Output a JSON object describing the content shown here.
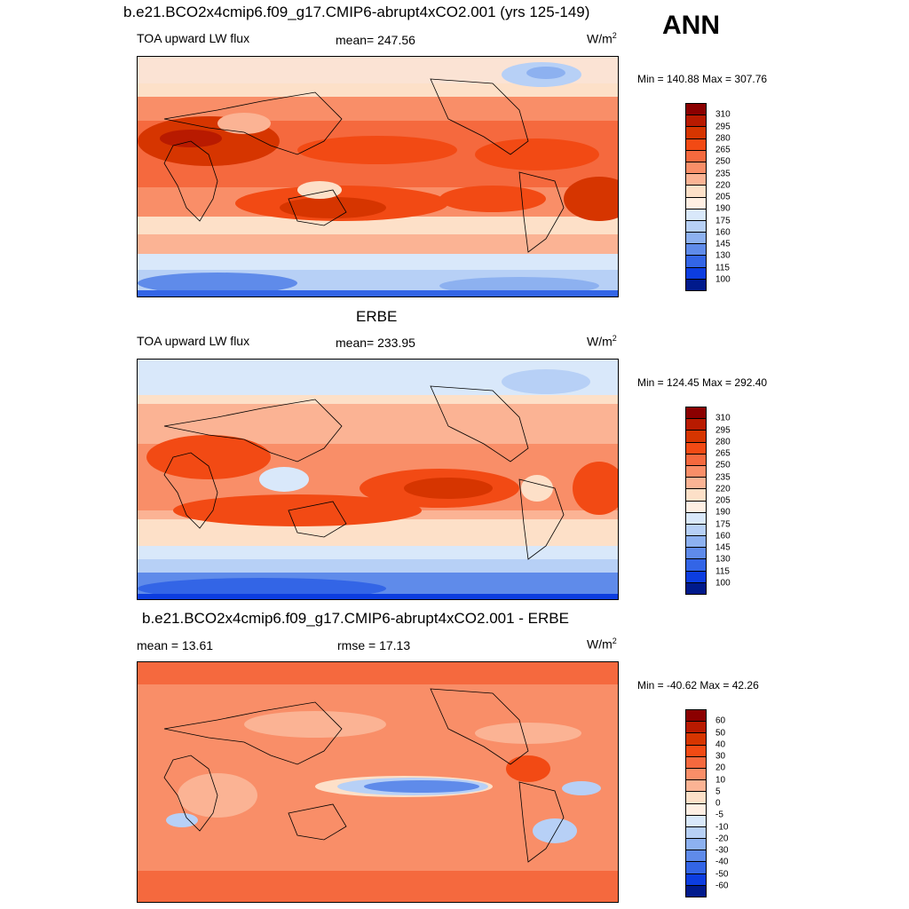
{
  "title": "b.e21.BCO2x4cmip6.f09_g17.CMIP6-abrupt4xCO2.001 (yrs 125-149)",
  "season": "ANN",
  "panels": [
    {
      "variable": "TOA upward LW flux",
      "stat_left": "",
      "stat_center": "mean= 247.56",
      "units": "W/m",
      "units_sup": "2",
      "minmax": "Min = 140.88 Max = 307.76",
      "levels": [
        "310",
        "295",
        "280",
        "265",
        "250",
        "235",
        "220",
        "205",
        "190",
        "175",
        "160",
        "145",
        "130",
        "115",
        "100"
      ],
      "colors": [
        "#8b0000",
        "#b81a00",
        "#d63500",
        "#f24a14",
        "#f5693e",
        "#f98e68",
        "#fbb394",
        "#fde0c8",
        "#ffefe3",
        "#d9e8fa",
        "#b7d0f6",
        "#8db1f0",
        "#5f8bea",
        "#3365e6",
        "#0c3de0",
        "#001a8c"
      ]
    },
    {
      "heading": "ERBE",
      "variable": "TOA upward LW flux",
      "stat_center": "mean= 233.95",
      "units": "W/m",
      "units_sup": "2",
      "minmax": "Min = 124.45 Max = 292.40",
      "levels": [
        "310",
        "295",
        "280",
        "265",
        "250",
        "235",
        "220",
        "205",
        "190",
        "175",
        "160",
        "145",
        "130",
        "115",
        "100"
      ],
      "colors": [
        "#8b0000",
        "#b81a00",
        "#d63500",
        "#f24a14",
        "#f5693e",
        "#f98e68",
        "#fbb394",
        "#fde0c8",
        "#ffefe3",
        "#d9e8fa",
        "#b7d0f6",
        "#8db1f0",
        "#5f8bea",
        "#3365e6",
        "#0c3de0",
        "#001a8c"
      ]
    },
    {
      "heading": "b.e21.BCO2x4cmip6.f09_g17.CMIP6-abrupt4xCO2.001 - ERBE",
      "stat_left": "mean =  13.61",
      "stat_center": "rmse =  17.13",
      "units": "W/m",
      "units_sup": "2",
      "minmax": "Min = -40.62 Max =  42.26",
      "levels": [
        "60",
        "50",
        "40",
        "30",
        "20",
        "10",
        "5",
        "0",
        "-5",
        "-10",
        "-20",
        "-30",
        "-40",
        "-50",
        "-60"
      ],
      "colors": [
        "#8b0000",
        "#b81a00",
        "#d63500",
        "#f24a14",
        "#f5693e",
        "#f98e68",
        "#fbb394",
        "#fde0c8",
        "#ffefe3",
        "#d9e8fa",
        "#b7d0f6",
        "#8db1f0",
        "#5f8bea",
        "#3365e6",
        "#0c3de0",
        "#001a8c"
      ]
    }
  ]
}
